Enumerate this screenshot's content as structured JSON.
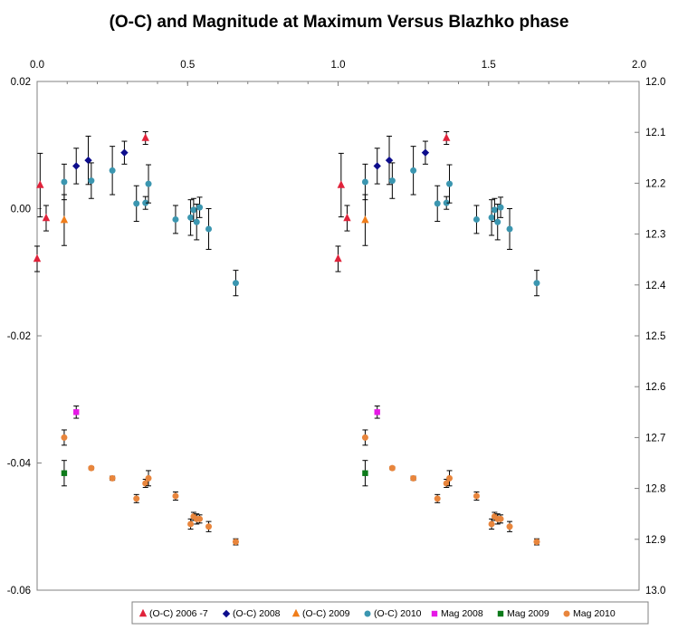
{
  "chart_data": {
    "type": "scatter",
    "title": "(O-C) and Magnitude at Maximum Versus Blazhko phase",
    "x_axis": {
      "position": "top",
      "range": [
        0,
        2
      ],
      "tick_labels": [
        "0.0",
        "0.5",
        "1.0",
        "1.5",
        "2.0"
      ]
    },
    "y_axis_left": {
      "range": [
        -0.06,
        0.02
      ],
      "tick_labels": [
        "0.02",
        "0.00",
        "-0.02",
        "-0.04",
        "-0.06"
      ]
    },
    "y_axis_right": {
      "range": [
        12.0,
        13.0
      ],
      "inverted": true,
      "tick_labels": [
        "12.0",
        "12.1",
        "12.2",
        "12.3",
        "12.4",
        "12.5",
        "12.6",
        "12.7",
        "12.8",
        "12.9",
        "13.0"
      ]
    },
    "grid": false,
    "legend_position": "bottom",
    "series": [
      {
        "name": "(O-C) 2006 -7",
        "axis": "left",
        "marker": "triangle",
        "color": "#e0223a",
        "points": [
          {
            "x": 0.0,
            "y": -0.0079,
            "err": 0.002
          },
          {
            "x": 0.01,
            "y": 0.0037,
            "err": 0.005
          },
          {
            "x": 0.03,
            "y": -0.0015,
            "err": 0.002
          },
          {
            "x": 0.36,
            "y": 0.0111,
            "err": 0.001
          },
          {
            "x": 1.0,
            "y": -0.0079,
            "err": 0.002
          },
          {
            "x": 1.01,
            "y": 0.0037,
            "err": 0.005
          },
          {
            "x": 1.03,
            "y": -0.0015,
            "err": 0.002
          },
          {
            "x": 1.36,
            "y": 0.0111,
            "err": 0.001
          }
        ]
      },
      {
        "name": "(O-C) 2008",
        "axis": "left",
        "marker": "diamond",
        "color": "#0d0d8c",
        "points": [
          {
            "x": 0.13,
            "y": 0.0067,
            "err": 0.0028
          },
          {
            "x": 0.17,
            "y": 0.0076,
            "err": 0.0038
          },
          {
            "x": 0.29,
            "y": 0.0088,
            "err": 0.0018
          },
          {
            "x": 1.13,
            "y": 0.0067,
            "err": 0.0028
          },
          {
            "x": 1.17,
            "y": 0.0076,
            "err": 0.0038
          },
          {
            "x": 1.29,
            "y": 0.0088,
            "err": 0.0018
          }
        ]
      },
      {
        "name": "(O-C) 2009",
        "axis": "left",
        "marker": "triangle",
        "color": "#f07d1a",
        "points": [
          {
            "x": 0.09,
            "y": -0.0018,
            "err": 0.004
          },
          {
            "x": 1.09,
            "y": -0.0018,
            "err": 0.004
          }
        ]
      },
      {
        "name": "(O-C) 2010",
        "axis": "left",
        "marker": "circle",
        "color": "#3b96b0",
        "points": [
          {
            "x": 0.09,
            "y": 0.0042,
            "err": 0.0028
          },
          {
            "x": 0.18,
            "y": 0.0044,
            "err": 0.0028
          },
          {
            "x": 0.25,
            "y": 0.006,
            "err": 0.0038
          },
          {
            "x": 0.33,
            "y": 0.0008,
            "err": 0.0028
          },
          {
            "x": 0.36,
            "y": 0.0009,
            "err": 0.001
          },
          {
            "x": 0.37,
            "y": 0.0039,
            "err": 0.003
          },
          {
            "x": 0.46,
            "y": -0.0017,
            "err": 0.0022
          },
          {
            "x": 0.51,
            "y": -0.0014,
            "err": 0.0028
          },
          {
            "x": 0.52,
            "y": -0.0002,
            "err": 0.0018
          },
          {
            "x": 0.53,
            "y": -0.0021,
            "err": 0.0028
          },
          {
            "x": 0.54,
            "y": 0.0002,
            "err": 0.0016
          },
          {
            "x": 0.57,
            "y": -0.0032,
            "err": 0.0032
          },
          {
            "x": 0.66,
            "y": -0.0117,
            "err": 0.002
          },
          {
            "x": 1.09,
            "y": 0.0042,
            "err": 0.0028
          },
          {
            "x": 1.18,
            "y": 0.0044,
            "err": 0.0028
          },
          {
            "x": 1.25,
            "y": 0.006,
            "err": 0.0038
          },
          {
            "x": 1.33,
            "y": 0.0008,
            "err": 0.0028
          },
          {
            "x": 1.36,
            "y": 0.0009,
            "err": 0.001
          },
          {
            "x": 1.37,
            "y": 0.0039,
            "err": 0.003
          },
          {
            "x": 1.46,
            "y": -0.0017,
            "err": 0.0022
          },
          {
            "x": 1.51,
            "y": -0.0014,
            "err": 0.0028
          },
          {
            "x": 1.52,
            "y": -0.0002,
            "err": 0.0018
          },
          {
            "x": 1.53,
            "y": -0.0021,
            "err": 0.0028
          },
          {
            "x": 1.54,
            "y": 0.0002,
            "err": 0.0016
          },
          {
            "x": 1.57,
            "y": -0.0032,
            "err": 0.0032
          },
          {
            "x": 1.66,
            "y": -0.0117,
            "err": 0.002
          }
        ]
      },
      {
        "name": "Mag 2008",
        "axis": "right",
        "marker": "square",
        "color": "#e619e6",
        "points": [
          {
            "x": 0.13,
            "y": 12.65,
            "err": 0.012
          },
          {
            "x": 1.13,
            "y": 12.65,
            "err": 0.012
          }
        ]
      },
      {
        "name": "Mag 2009",
        "axis": "right",
        "marker": "square",
        "color": "#0d7a1a",
        "points": [
          {
            "x": 0.09,
            "y": 12.77,
            "err": 0.025
          },
          {
            "x": 1.09,
            "y": 12.77,
            "err": 0.025
          }
        ]
      },
      {
        "name": "Mag 2010",
        "axis": "right",
        "marker": "circle",
        "color": "#e8853c",
        "points": [
          {
            "x": 0.09,
            "y": 12.7,
            "err": 0.015
          },
          {
            "x": 0.18,
            "y": 12.76,
            "err": 0.003
          },
          {
            "x": 0.25,
            "y": 12.78,
            "err": 0.004
          },
          {
            "x": 0.33,
            "y": 12.82,
            "err": 0.008
          },
          {
            "x": 0.36,
            "y": 12.79,
            "err": 0.008
          },
          {
            "x": 0.37,
            "y": 12.78,
            "err": 0.015
          },
          {
            "x": 0.46,
            "y": 12.815,
            "err": 0.008
          },
          {
            "x": 0.51,
            "y": 12.87,
            "err": 0.01
          },
          {
            "x": 0.52,
            "y": 12.855,
            "err": 0.008
          },
          {
            "x": 0.53,
            "y": 12.86,
            "err": 0.01
          },
          {
            "x": 0.54,
            "y": 12.86,
            "err": 0.008
          },
          {
            "x": 0.57,
            "y": 12.875,
            "err": 0.01
          },
          {
            "x": 0.66,
            "y": 12.905,
            "err": 0.006
          },
          {
            "x": 1.09,
            "y": 12.7,
            "err": 0.015
          },
          {
            "x": 1.18,
            "y": 12.76,
            "err": 0.003
          },
          {
            "x": 1.25,
            "y": 12.78,
            "err": 0.004
          },
          {
            "x": 1.33,
            "y": 12.82,
            "err": 0.008
          },
          {
            "x": 1.36,
            "y": 12.79,
            "err": 0.008
          },
          {
            "x": 1.37,
            "y": 12.78,
            "err": 0.015
          },
          {
            "x": 1.46,
            "y": 12.815,
            "err": 0.008
          },
          {
            "x": 1.51,
            "y": 12.87,
            "err": 0.01
          },
          {
            "x": 1.52,
            "y": 12.855,
            "err": 0.008
          },
          {
            "x": 1.53,
            "y": 12.86,
            "err": 0.01
          },
          {
            "x": 1.54,
            "y": 12.86,
            "err": 0.008
          },
          {
            "x": 1.57,
            "y": 12.875,
            "err": 0.01
          },
          {
            "x": 1.66,
            "y": 12.905,
            "err": 0.006
          }
        ]
      }
    ]
  }
}
